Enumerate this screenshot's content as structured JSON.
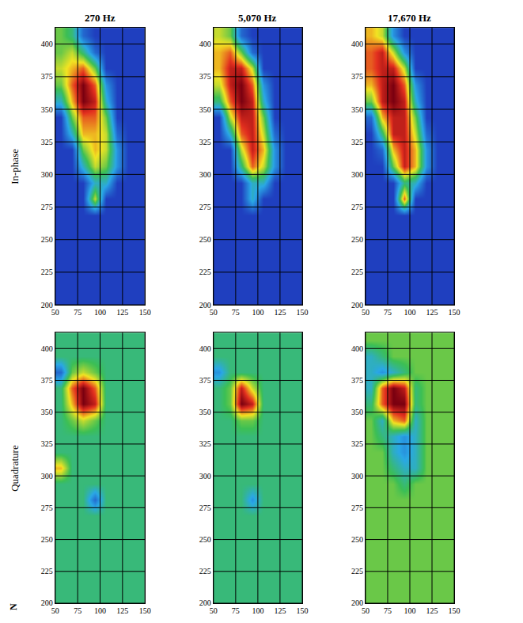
{
  "chart_data": [
    {
      "type": "heatmap",
      "title": "270 Hz",
      "ylabel": "In-phase",
      "x": [
        56.25,
        68.75,
        81.25,
        93.75,
        106.25,
        118.75,
        131.25,
        143.75
      ],
      "y": [
        206.25,
        218.75,
        231.25,
        243.75,
        256.25,
        268.75,
        281.25,
        293.75,
        306.25,
        318.75,
        331.25,
        343.75,
        356.25,
        368.75,
        381.25,
        393.75,
        406.25
      ],
      "z": [
        [
          0,
          0,
          0,
          0,
          0,
          0,
          0,
          0
        ],
        [
          0,
          0,
          0,
          0,
          0,
          0,
          0,
          0
        ],
        [
          0,
          0,
          0,
          0,
          0,
          0,
          0,
          0
        ],
        [
          0,
          0,
          0,
          0,
          0,
          0,
          0,
          0
        ],
        [
          0,
          0,
          0,
          0,
          0,
          0,
          0,
          0
        ],
        [
          0,
          0,
          0,
          0,
          0,
          0,
          0,
          0
        ],
        [
          0,
          0,
          0,
          6,
          0,
          0,
          0,
          0
        ],
        [
          0,
          0,
          0,
          3,
          3,
          0,
          0,
          0
        ],
        [
          0,
          0,
          3,
          6,
          5,
          2,
          0,
          0
        ],
        [
          0,
          0,
          5,
          7,
          6,
          2,
          0,
          0
        ],
        [
          0,
          3,
          7,
          7,
          6,
          1,
          0,
          0
        ],
        [
          0,
          5,
          8,
          8,
          5,
          0,
          0,
          0
        ],
        [
          3,
          7,
          10,
          9,
          3,
          0,
          0,
          0
        ],
        [
          5,
          8,
          10,
          8,
          2,
          0,
          0,
          0
        ],
        [
          6,
          7,
          8,
          5,
          0,
          0,
          0,
          0
        ],
        [
          5,
          6,
          4,
          1,
          0,
          0,
          0,
          0
        ],
        [
          5,
          4,
          1,
          0,
          0,
          0,
          0,
          0
        ]
      ],
      "zlim": [
        0,
        10
      ],
      "xlim": [
        50,
        150
      ],
      "ylim": [
        200,
        412.5
      ],
      "xticks": [
        50,
        75,
        100,
        125,
        150
      ],
      "yticks": [
        200,
        225,
        250,
        275,
        300,
        325,
        350,
        375,
        400
      ],
      "grid": true
    },
    {
      "type": "heatmap",
      "title": "5,070 Hz",
      "x": [
        56.25,
        68.75,
        81.25,
        93.75,
        106.25,
        118.75,
        131.25,
        143.75
      ],
      "y": [
        206.25,
        218.75,
        231.25,
        243.75,
        256.25,
        268.75,
        281.25,
        293.75,
        306.25,
        318.75,
        331.25,
        343.75,
        356.25,
        368.75,
        381.25,
        393.75,
        406.25
      ],
      "z": [
        [
          0,
          0,
          0,
          0,
          0,
          0,
          0,
          0
        ],
        [
          0,
          0,
          0,
          0,
          0,
          0,
          0,
          0
        ],
        [
          0,
          0,
          0,
          0,
          0,
          0,
          0,
          0
        ],
        [
          0,
          0,
          0,
          0,
          0,
          0,
          0,
          0
        ],
        [
          0,
          0,
          0,
          0,
          0,
          0,
          0,
          0
        ],
        [
          0,
          0,
          0,
          0,
          0,
          0,
          0,
          0
        ],
        [
          0,
          0,
          0,
          3,
          0,
          0,
          0,
          0
        ],
        [
          0,
          0,
          0,
          3,
          3,
          0,
          0,
          0
        ],
        [
          0,
          0,
          4,
          8,
          6,
          2,
          0,
          0
        ],
        [
          0,
          0,
          6,
          9,
          7,
          2,
          0,
          0
        ],
        [
          0,
          3,
          8,
          9,
          6,
          1,
          0,
          0
        ],
        [
          0,
          6,
          9,
          9,
          5,
          0,
          0,
          0
        ],
        [
          4,
          8,
          10,
          9,
          3,
          0,
          0,
          0
        ],
        [
          6,
          9,
          10,
          8,
          2,
          0,
          0,
          0
        ],
        [
          7,
          9,
          9,
          6,
          0,
          0,
          0,
          0
        ],
        [
          7,
          8,
          5,
          1,
          0,
          0,
          0,
          0
        ],
        [
          6,
          5,
          1,
          0,
          0,
          0,
          0,
          0
        ]
      ],
      "zlim": [
        0,
        10
      ],
      "xlim": [
        50,
        150
      ],
      "ylim": [
        200,
        412.5
      ],
      "xticks": [
        50,
        75,
        100,
        125,
        150
      ],
      "yticks": [
        200,
        225,
        250,
        275,
        300,
        325,
        350,
        375,
        400
      ],
      "grid": true
    },
    {
      "type": "heatmap",
      "title": "17,670 Hz",
      "x": [
        56.25,
        68.75,
        81.25,
        93.75,
        106.25,
        118.75,
        131.25,
        143.75
      ],
      "y": [
        206.25,
        218.75,
        231.25,
        243.75,
        256.25,
        268.75,
        281.25,
        293.75,
        306.25,
        318.75,
        331.25,
        343.75,
        356.25,
        368.75,
        381.25,
        393.75,
        406.25
      ],
      "z": [
        [
          0,
          0,
          0,
          0,
          0,
          0,
          0,
          0
        ],
        [
          0,
          0,
          0,
          0,
          0,
          0,
          0,
          0
        ],
        [
          0,
          0,
          0,
          0,
          0,
          0,
          0,
          0
        ],
        [
          0,
          0,
          0,
          0,
          0,
          0,
          0,
          0
        ],
        [
          0,
          0,
          0,
          0,
          0,
          0,
          0,
          0
        ],
        [
          0,
          0,
          0,
          0,
          0,
          0,
          0,
          0
        ],
        [
          0,
          0,
          0,
          8,
          0,
          0,
          0,
          0
        ],
        [
          0,
          0,
          0,
          4,
          3,
          0,
          0,
          0
        ],
        [
          0,
          0,
          5,
          9,
          7,
          2,
          0,
          0
        ],
        [
          0,
          1,
          7,
          9,
          7,
          2,
          0,
          0
        ],
        [
          0,
          4,
          9,
          9,
          6,
          1,
          0,
          0
        ],
        [
          1,
          7,
          9,
          9,
          5,
          0,
          0,
          0
        ],
        [
          5,
          9,
          10,
          9,
          3,
          0,
          0,
          0
        ],
        [
          7,
          9,
          10,
          8,
          2,
          0,
          0,
          0
        ],
        [
          8,
          9,
          9,
          6,
          0,
          0,
          0,
          0
        ],
        [
          8,
          9,
          6,
          2,
          0,
          0,
          0,
          0
        ],
        [
          7,
          6,
          2,
          0,
          0,
          0,
          0,
          0
        ]
      ],
      "zlim": [
        0,
        10
      ],
      "xlim": [
        50,
        150
      ],
      "ylim": [
        200,
        412.5
      ],
      "xticks": [
        50,
        75,
        100,
        125,
        150
      ],
      "yticks": [
        200,
        225,
        250,
        275,
        300,
        325,
        350,
        375,
        400
      ],
      "grid": true
    },
    {
      "type": "heatmap",
      "ylabel": "Quadrature",
      "annotation": "N",
      "x": [
        56.25,
        68.75,
        81.25,
        93.75,
        106.25,
        118.75,
        131.25,
        143.75
      ],
      "y": [
        206.25,
        218.75,
        231.25,
        243.75,
        256.25,
        268.75,
        281.25,
        293.75,
        306.25,
        318.75,
        331.25,
        343.75,
        356.25,
        368.75,
        381.25,
        393.75,
        406.25
      ],
      "z": [
        [
          4,
          4,
          4,
          4,
          4,
          4,
          4,
          4
        ],
        [
          4,
          4,
          4,
          4,
          4,
          4,
          4,
          4
        ],
        [
          4,
          4,
          4,
          4,
          4,
          4,
          4,
          4
        ],
        [
          4,
          4,
          4,
          4,
          4,
          4,
          4,
          4
        ],
        [
          4,
          4,
          4,
          4,
          4,
          4,
          4,
          4
        ],
        [
          4,
          4,
          4,
          4,
          4,
          4,
          4,
          4
        ],
        [
          4,
          4,
          4,
          1,
          4,
          4,
          4,
          4
        ],
        [
          4,
          4,
          4,
          4,
          4,
          4,
          4,
          4
        ],
        [
          7,
          4,
          4,
          4,
          4,
          4,
          4,
          4
        ],
        [
          4,
          4,
          4,
          4,
          4,
          4,
          4,
          4
        ],
        [
          4,
          4,
          4,
          4,
          4,
          4,
          4,
          4
        ],
        [
          4,
          5,
          6,
          5,
          4,
          4,
          4,
          4
        ],
        [
          4,
          7,
          10,
          9,
          4,
          4,
          4,
          4
        ],
        [
          4,
          8,
          10,
          8,
          4,
          4,
          4,
          4
        ],
        [
          1,
          5,
          6,
          5,
          4,
          4,
          4,
          4
        ],
        [
          4,
          4,
          4,
          4,
          4,
          4,
          4,
          4
        ],
        [
          4,
          4,
          4,
          4,
          4,
          4,
          4,
          4
        ]
      ],
      "zlim": [
        0,
        10
      ],
      "xlim": [
        50,
        150
      ],
      "ylim": [
        200,
        412.5
      ],
      "xticks": [
        50,
        75,
        100,
        125,
        150
      ],
      "yticks": [
        200,
        225,
        250,
        275,
        300,
        325,
        350,
        375,
        400
      ],
      "grid": true
    },
    {
      "type": "heatmap",
      "x": [
        56.25,
        68.75,
        81.25,
        93.75,
        106.25,
        118.75,
        131.25,
        143.75
      ],
      "y": [
        206.25,
        218.75,
        231.25,
        243.75,
        256.25,
        268.75,
        281.25,
        293.75,
        306.25,
        318.75,
        331.25,
        343.75,
        356.25,
        368.75,
        381.25,
        393.75,
        406.25
      ],
      "z": [
        [
          4,
          4,
          4,
          4,
          4,
          4,
          4,
          4
        ],
        [
          4,
          4,
          4,
          4,
          4,
          4,
          4,
          4
        ],
        [
          4,
          4,
          4,
          4,
          4,
          4,
          4,
          4
        ],
        [
          4,
          4,
          4,
          4,
          4,
          4,
          4,
          4
        ],
        [
          4,
          4,
          4,
          4,
          4,
          4,
          4,
          4
        ],
        [
          4,
          4,
          4,
          4,
          4,
          4,
          4,
          4
        ],
        [
          4,
          4,
          4,
          2,
          4,
          4,
          4,
          4
        ],
        [
          4,
          4,
          4,
          4,
          4,
          4,
          4,
          4
        ],
        [
          4,
          4,
          4,
          4,
          4,
          4,
          4,
          4
        ],
        [
          4,
          4,
          4,
          4,
          4,
          4,
          4,
          4
        ],
        [
          4,
          4,
          4,
          4,
          4,
          4,
          4,
          4
        ],
        [
          4,
          4,
          5,
          5,
          4,
          4,
          4,
          4
        ],
        [
          4,
          5,
          10,
          9,
          4,
          4,
          4,
          4
        ],
        [
          4,
          5,
          9,
          6,
          4,
          4,
          4,
          4
        ],
        [
          2,
          4,
          4,
          4,
          4,
          4,
          4,
          4
        ],
        [
          4,
          4,
          4,
          4,
          4,
          4,
          4,
          4
        ],
        [
          4,
          4,
          4,
          4,
          4,
          4,
          4,
          4
        ]
      ],
      "zlim": [
        0,
        10
      ],
      "xlim": [
        50,
        150
      ],
      "ylim": [
        200,
        412.5
      ],
      "xticks": [
        50,
        75,
        100,
        125,
        150
      ],
      "yticks": [
        200,
        225,
        250,
        275,
        300,
        325,
        350,
        375,
        400
      ],
      "grid": true
    },
    {
      "type": "heatmap",
      "x": [
        56.25,
        68.75,
        81.25,
        93.75,
        106.25,
        118.75,
        131.25,
        143.75
      ],
      "y": [
        206.25,
        218.75,
        231.25,
        243.75,
        256.25,
        268.75,
        281.25,
        293.75,
        306.25,
        318.75,
        331.25,
        343.75,
        356.25,
        368.75,
        381.25,
        393.75,
        406.25
      ],
      "z": [
        [
          5,
          5,
          5,
          5,
          5,
          5,
          5,
          5
        ],
        [
          5,
          5,
          5,
          5,
          5,
          5,
          5,
          5
        ],
        [
          5,
          5,
          5,
          5,
          5,
          5,
          5,
          5
        ],
        [
          5,
          5,
          5,
          5,
          5,
          5,
          5,
          5
        ],
        [
          5,
          5,
          5,
          5,
          5,
          5,
          5,
          5
        ],
        [
          5,
          5,
          5,
          5,
          5,
          5,
          5,
          5
        ],
        [
          5,
          5,
          5,
          5,
          5,
          5,
          5,
          5
        ],
        [
          5,
          5,
          5,
          4,
          5,
          5,
          5,
          5
        ],
        [
          5,
          5,
          4,
          3,
          3,
          5,
          5,
          5
        ],
        [
          5,
          5,
          3,
          2,
          3,
          5,
          5,
          5
        ],
        [
          5,
          4,
          3,
          2,
          3,
          5,
          5,
          5
        ],
        [
          5,
          3,
          7,
          8,
          3,
          5,
          5,
          5
        ],
        [
          4,
          8,
          10,
          10,
          4,
          5,
          5,
          5
        ],
        [
          3,
          8,
          10,
          9,
          4,
          5,
          5,
          5
        ],
        [
          3,
          2,
          3,
          4,
          5,
          5,
          5,
          5
        ],
        [
          3,
          4,
          5,
          5,
          5,
          5,
          5,
          5
        ],
        [
          5,
          5,
          5,
          5,
          5,
          5,
          5,
          5
        ]
      ],
      "zlim": [
        0,
        10
      ],
      "xlim": [
        50,
        150
      ],
      "ylim": [
        200,
        412.5
      ],
      "xticks": [
        50,
        75,
        100,
        125,
        150
      ],
      "yticks": [
        200,
        225,
        250,
        275,
        300,
        325,
        350,
        375,
        400
      ],
      "grid": true
    }
  ]
}
